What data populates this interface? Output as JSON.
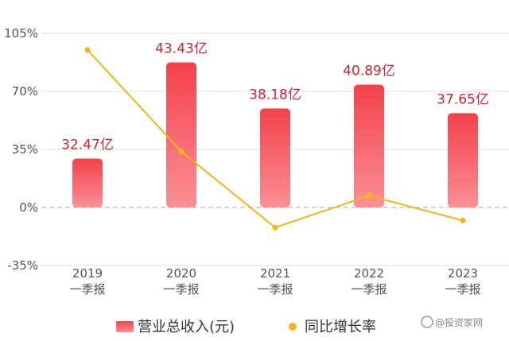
{
  "chart_data": {
    "type": "bar",
    "categories": [
      "2019\n一季报",
      "2020\n一季报",
      "2021\n一季报",
      "2022\n一季报",
      "2023\n一季报"
    ],
    "series": [
      {
        "name": "营业总收入(元)",
        "type": "bar",
        "values": [
          32.47,
          43.43,
          38.18,
          40.89,
          37.65
        ],
        "labels": [
          "32.47亿",
          "43.43亿",
          "38.18亿",
          "40.89亿",
          "37.65亿"
        ],
        "color": "#f0343f"
      },
      {
        "name": "同比增长率",
        "type": "line",
        "values": [
          95,
          33.8,
          -12.1,
          7.1,
          -7.9
        ],
        "color": "#f2b51a"
      }
    ],
    "y_ticks": [
      "105%",
      "70%",
      "35%",
      "0%",
      "-35%"
    ],
    "ylim": [
      -35,
      105
    ],
    "grid": true,
    "legend": "bottom"
  },
  "watermark": "@投资家网"
}
